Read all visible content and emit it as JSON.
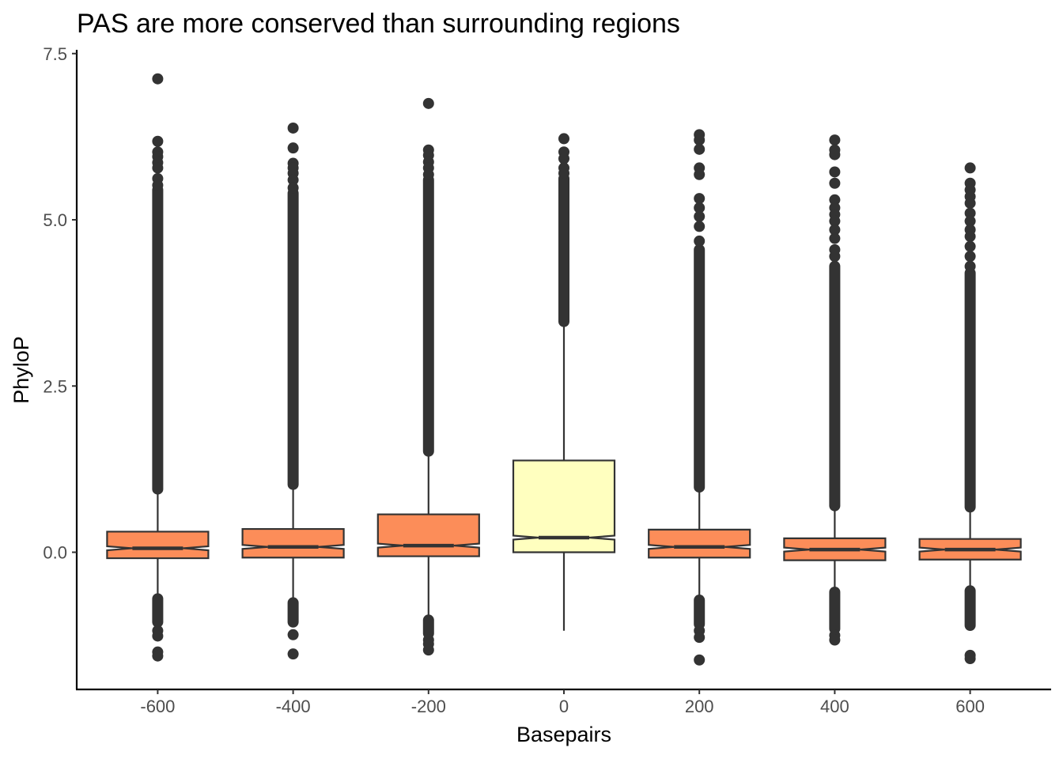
{
  "chart_data": {
    "type": "box",
    "title": "PAS are more conserved than surrounding regions",
    "xlabel": "Basepairs",
    "ylabel": "PhyloP",
    "x_ticks": [
      "-600",
      "-400",
      "-200",
      "0",
      "200",
      "400",
      "600"
    ],
    "y_ticks": [
      "0.0",
      "2.5",
      "5.0",
      "7.5"
    ],
    "ylim": [
      -2.05,
      7.6
    ],
    "xlim": [
      -700,
      700
    ],
    "notched": true,
    "grid": false,
    "legend": "none",
    "colors": {
      "surrounding": "#fc8d59",
      "pas": "#ffffbf",
      "outline": "#333333"
    },
    "boxes": [
      {
        "x": -600,
        "q1": -0.09,
        "median": 0.06,
        "q3": 0.31,
        "whisker_low": -0.66,
        "whisker_high": 0.9,
        "notch_low": 0.03,
        "notch_high": 0.09,
        "fill": "#fc8d59",
        "outliers_high": [
          7.12,
          6.18,
          6.02,
          5.95,
          5.86,
          5.78,
          5.62,
          5.52
        ],
        "outliers_high_dense": [
          0.95,
          5.45
        ],
        "outliers_low_dense": [
          -1.05,
          -0.7
        ],
        "outliers_low": [
          -1.18,
          -1.26,
          -1.5,
          -1.56
        ]
      },
      {
        "x": -400,
        "q1": -0.08,
        "median": 0.08,
        "q3": 0.35,
        "whisker_low": -0.72,
        "whisker_high": 0.98,
        "notch_low": 0.05,
        "notch_high": 0.11,
        "fill": "#fc8d59",
        "outliers_high": [
          6.38,
          6.08,
          5.85,
          5.78,
          5.7,
          5.6,
          5.48
        ],
        "outliers_high_dense": [
          1.02,
          5.4
        ],
        "outliers_low_dense": [
          -1.05,
          -0.76
        ],
        "outliers_low": [
          -1.24,
          -1.53
        ]
      },
      {
        "x": -200,
        "q1": -0.06,
        "median": 0.1,
        "q3": 0.57,
        "whisker_low": -0.98,
        "whisker_high": 1.48,
        "notch_low": 0.07,
        "notch_high": 0.13,
        "fill": "#fc8d59",
        "outliers_high": [
          6.75,
          6.05,
          5.97,
          5.87,
          5.78,
          5.68
        ],
        "outliers_high_dense": [
          1.52,
          5.6
        ],
        "outliers_low_dense": [
          -1.22,
          -1.02
        ],
        "outliers_low": [
          -1.32,
          -1.38,
          -1.47
        ]
      },
      {
        "x": 0,
        "q1": 0.0,
        "median": 0.22,
        "q3": 1.38,
        "whisker_low": -1.18,
        "whisker_high": 3.44,
        "notch_low": 0.19,
        "notch_high": 0.25,
        "fill": "#ffffbf",
        "outliers_high": [
          6.22,
          6.02,
          5.92,
          5.78,
          5.7
        ],
        "outliers_high_dense": [
          3.47,
          5.62
        ],
        "outliers_low_dense": [],
        "outliers_low": []
      },
      {
        "x": 200,
        "q1": -0.08,
        "median": 0.08,
        "q3": 0.34,
        "whisker_low": -0.7,
        "whisker_high": 0.95,
        "notch_low": 0.05,
        "notch_high": 0.11,
        "fill": "#fc8d59",
        "outliers_high": [
          6.28,
          6.2,
          6.06,
          5.78,
          5.68,
          5.32,
          5.18,
          5.05,
          4.9,
          4.68
        ],
        "outliers_high_dense": [
          0.98,
          4.55
        ],
        "outliers_low_dense": [
          -1.08,
          -0.72
        ],
        "outliers_low": [
          -1.18,
          -1.28,
          -1.62
        ]
      },
      {
        "x": 400,
        "q1": -0.12,
        "median": 0.04,
        "q3": 0.21,
        "whisker_low": -0.57,
        "whisker_high": 0.67,
        "notch_low": 0.01,
        "notch_high": 0.07,
        "fill": "#fc8d59",
        "outliers_high": [
          6.2,
          6.05,
          5.98,
          5.72,
          5.55,
          5.3,
          5.18,
          5.08,
          4.98,
          4.85,
          4.72,
          4.55,
          4.45
        ],
        "outliers_high_dense": [
          0.7,
          4.3
        ],
        "outliers_low_dense": [
          -1.15,
          -0.6
        ],
        "outliers_low": [
          -1.25,
          -1.32
        ]
      },
      {
        "x": 600,
        "q1": -0.11,
        "median": 0.04,
        "q3": 0.2,
        "whisker_low": -0.55,
        "whisker_high": 0.65,
        "notch_low": 0.01,
        "notch_high": 0.07,
        "fill": "#fc8d59",
        "outliers_high": [
          5.78,
          5.55,
          5.45,
          5.35,
          5.25,
          5.1,
          4.98,
          4.85,
          4.75,
          4.6,
          4.45,
          4.3
        ],
        "outliers_high_dense": [
          0.68,
          4.2
        ],
        "outliers_low_dense": [
          -1.1,
          -0.58
        ],
        "outliers_low": [
          -1.55,
          -1.6
        ]
      }
    ]
  }
}
